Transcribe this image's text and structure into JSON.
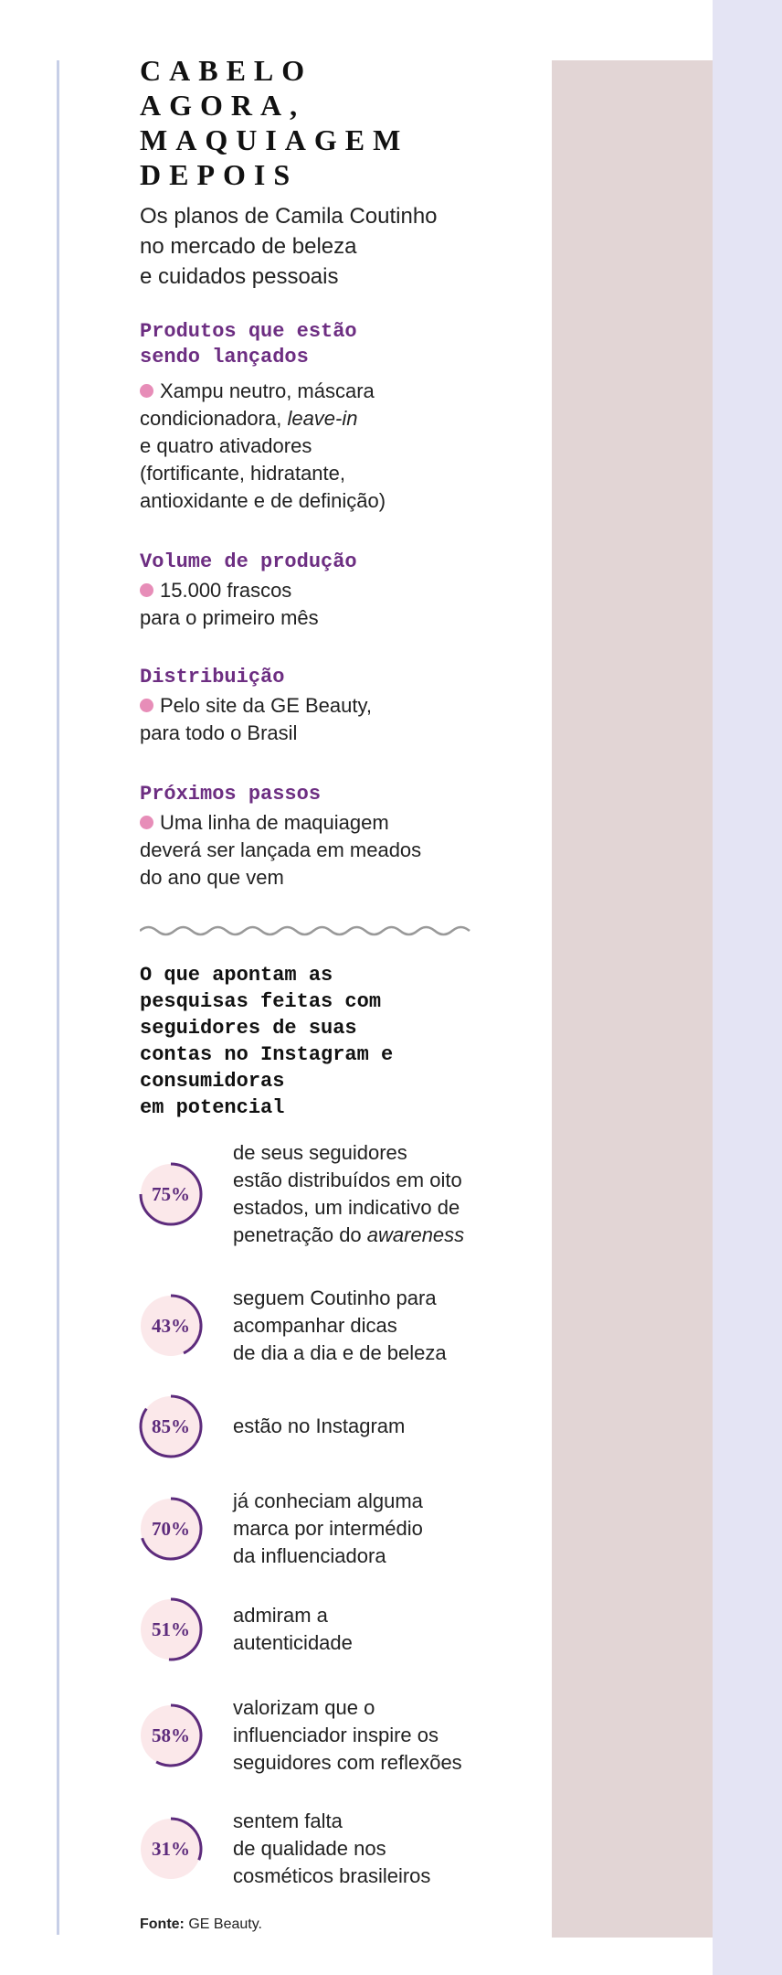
{
  "header": {
    "title_lines": [
      "CABELO",
      "AGORA,",
      "MAQUIAGEM",
      "DEPOIS"
    ],
    "subtitle_lines": [
      "Os planos de Camila Coutinho",
      "no mercado de beleza",
      "e cuidados pessoais"
    ]
  },
  "sections": [
    {
      "heading_lines": [
        "Produtos que estão",
        "sendo lançados"
      ],
      "lines": [
        "Xampu neutro, máscara",
        [
          "condicionadora, ",
          {
            "em": "leave-in"
          }
        ],
        "e quatro ativadores",
        "(fortificante, hidratante,",
        "antioxidante e de definição)"
      ]
    },
    {
      "heading_lines": [
        "Volume de produção"
      ],
      "lines": [
        "15.000 frascos",
        "para o primeiro mês"
      ]
    },
    {
      "heading_lines": [
        "Distribuição"
      ],
      "lines": [
        "Pelo site da GE Beauty,",
        "para todo o Brasil"
      ]
    },
    {
      "heading_lines": [
        "Próximos passos"
      ],
      "lines": [
        "Uma linha de maquiagem",
        "deverá ser lançada em meados",
        "do ano que vem"
      ]
    }
  ],
  "research": {
    "heading_lines": [
      "O que apontam as",
      "pesquisas feitas com",
      "seguidores de suas",
      "contas no Instagram e",
      "consumidoras",
      "em potencial"
    ],
    "stats": [
      {
        "value": 75,
        "label": "75%",
        "lines": [
          "de seus seguidores",
          "estão distribuídos em oito",
          "estados, um indicativo de",
          [
            "penetração do ",
            {
              "em": "awareness"
            }
          ]
        ]
      },
      {
        "value": 43,
        "label": "43%",
        "lines": [
          "seguem Coutinho para",
          "acompanhar dicas",
          "de dia a dia e de beleza"
        ]
      },
      {
        "value": 85,
        "label": "85%",
        "lines": [
          "estão no Instagram"
        ]
      },
      {
        "value": 70,
        "label": "70%",
        "lines": [
          "já conheciam alguma",
          "marca por intermédio",
          "da influenciadora"
        ]
      },
      {
        "value": 51,
        "label": "51%",
        "lines": [
          "admiram a",
          "autenticidade"
        ]
      },
      {
        "value": 58,
        "label": "58%",
        "lines": [
          "valorizam que o",
          "influenciador inspire os",
          "seguidores com reflexões"
        ]
      },
      {
        "value": 31,
        "label": "31%",
        "lines": [
          "sentem falta",
          "de qualidade nos",
          "cosméticos brasileiros"
        ]
      }
    ]
  },
  "source": {
    "label": "Fonte:",
    "text": "GE Beauty."
  }
}
